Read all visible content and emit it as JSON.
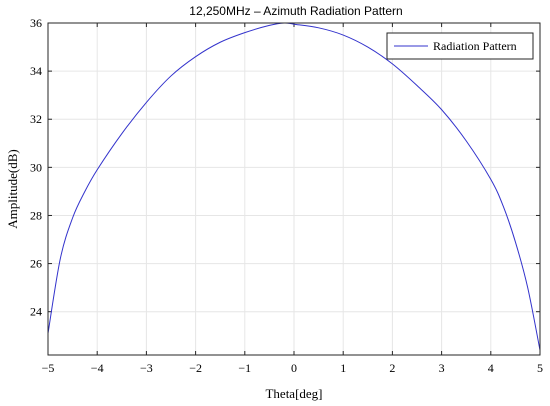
{
  "chart_data": {
    "type": "line",
    "title": "12,250MHz – Azimuth Radiation Pattern",
    "xlabel": "Theta[deg]",
    "ylabel": "Amplitude(dB)",
    "xlim": [
      -5,
      5
    ],
    "ylim": [
      22.2,
      36
    ],
    "x_ticks": [
      -5,
      -4,
      -3,
      -2,
      -1,
      0,
      1,
      2,
      3,
      4,
      5
    ],
    "y_ticks": [
      24,
      26,
      28,
      30,
      32,
      34,
      36
    ],
    "grid": true,
    "legend_position": "top-right",
    "series": [
      {
        "name": "Radiation Pattern",
        "color": "#3333cc",
        "x": [
          -5,
          -4.75,
          -4.5,
          -4.25,
          -4,
          -3.5,
          -3,
          -2.5,
          -2,
          -1.5,
          -1,
          -0.5,
          -0.2,
          0,
          0.5,
          1,
          1.5,
          2,
          2.5,
          3,
          3.5,
          4,
          4.25,
          4.5,
          4.75,
          5
        ],
        "y": [
          23.1,
          26.2,
          27.9,
          29.0,
          29.9,
          31.4,
          32.7,
          33.8,
          34.6,
          35.2,
          35.6,
          35.9,
          36.0,
          35.95,
          35.8,
          35.5,
          35.0,
          34.3,
          33.4,
          32.4,
          31.1,
          29.5,
          28.4,
          26.9,
          25.0,
          22.4
        ]
      }
    ]
  }
}
